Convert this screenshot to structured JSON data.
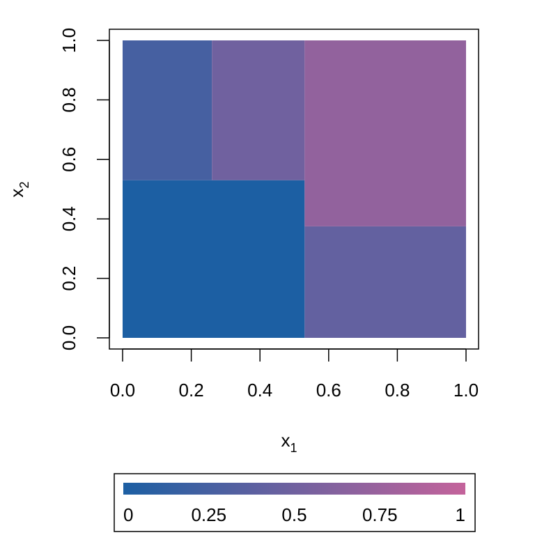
{
  "chart_data": {
    "type": "heatmap",
    "title": "",
    "xlabel": {
      "main": "x",
      "subscript": "1"
    },
    "ylabel": {
      "main": "x",
      "subscript": "2"
    },
    "xlim": [
      0,
      1
    ],
    "ylim": [
      0,
      1
    ],
    "x_ticks": [
      "0.0",
      "0.2",
      "0.4",
      "0.6",
      "0.8",
      "1.0"
    ],
    "y_ticks": [
      "0.0",
      "0.2",
      "0.4",
      "0.6",
      "0.8",
      "1.0"
    ],
    "regions": [
      {
        "x": [
          0.0,
          0.53
        ],
        "y": [
          0.0,
          0.53
        ],
        "value": 0.0
      },
      {
        "x": [
          0.0,
          0.26
        ],
        "y": [
          0.53,
          1.0
        ],
        "value": 0.25
      },
      {
        "x": [
          0.26,
          0.53
        ],
        "y": [
          0.53,
          1.0
        ],
        "value": 0.5
      },
      {
        "x": [
          0.53,
          1.0
        ],
        "y": [
          0.0,
          0.375
        ],
        "value": 0.42
      },
      {
        "x": [
          0.53,
          1.0
        ],
        "y": [
          0.375,
          1.0
        ],
        "value": 0.7
      }
    ],
    "colorbar": {
      "range": [
        0,
        1
      ],
      "ticks": [
        "0",
        "0.25",
        "0.5",
        "0.75",
        "1"
      ],
      "colors": [
        "#1c5fa3",
        "#c4639b"
      ]
    },
    "grid": false,
    "legend_position": "bottom"
  }
}
